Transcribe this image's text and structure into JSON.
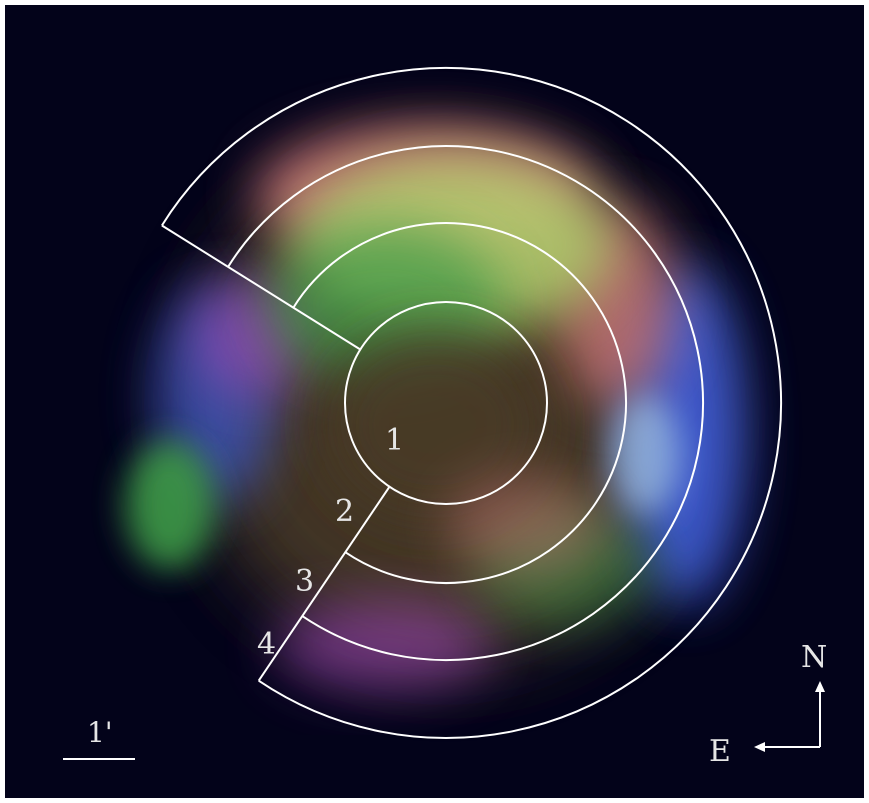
{
  "image": {
    "background_color": "#03031a",
    "emission_colors": {
      "red": "#d2787a",
      "green": "#3c9a46",
      "yellow_green": "#b4d06e",
      "blue": "#3c5ad2",
      "magenta": "#a04ab4",
      "cyan_white": "#a5c8e6",
      "dark_core": "#4a3a28"
    },
    "region_labels": [
      "1",
      "2",
      "3",
      "4"
    ],
    "scale_bar": {
      "label": "1'"
    },
    "compass": {
      "north": "N",
      "east": "E"
    },
    "overlay_color": "#ffffff"
  }
}
